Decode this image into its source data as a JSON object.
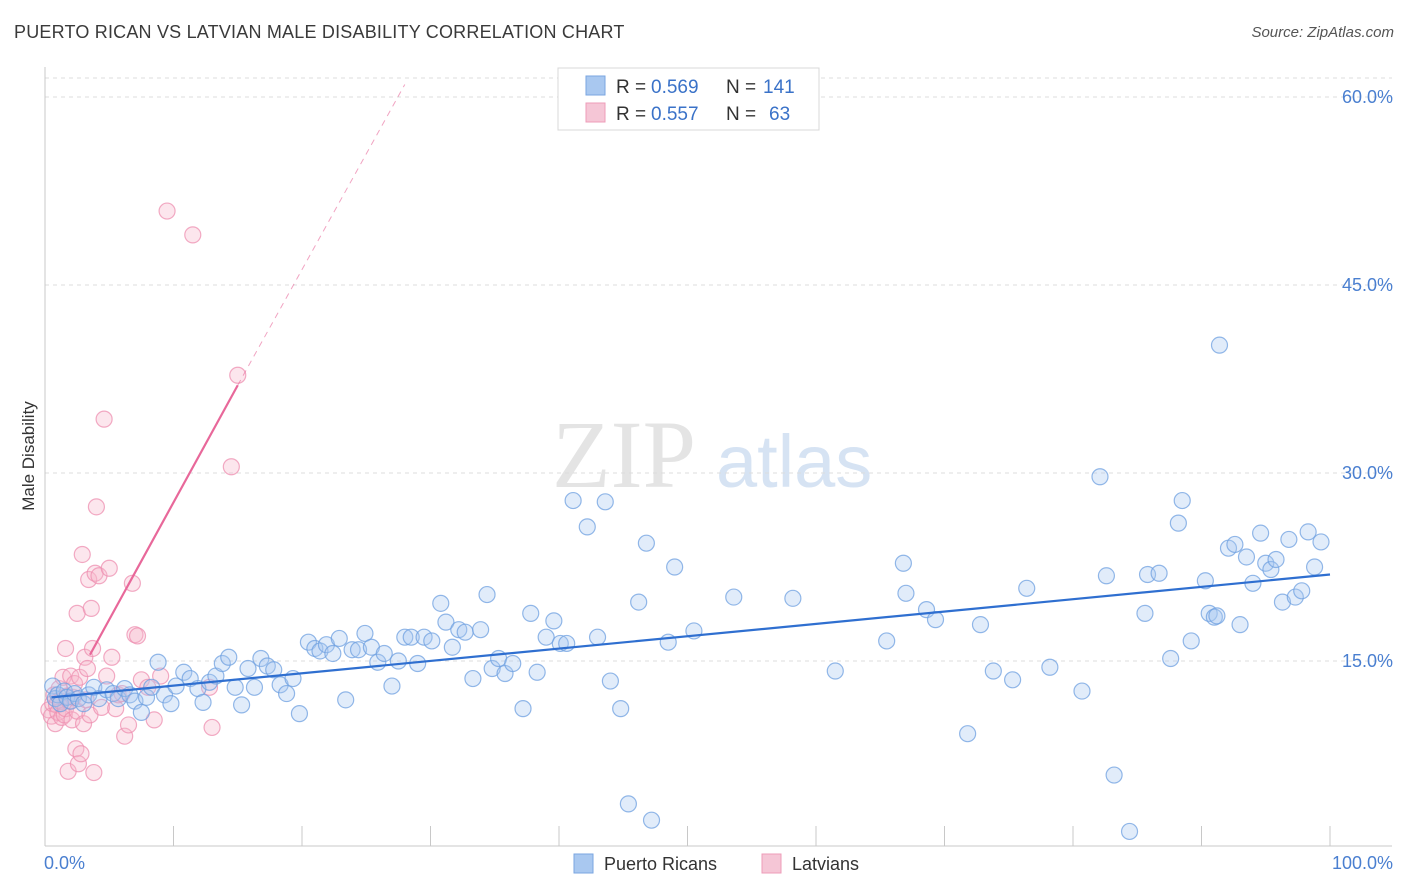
{
  "header": {
    "title": "PUERTO RICAN VS LATVIAN MALE DISABILITY CORRELATION CHART",
    "source": "Source: ZipAtlas.com"
  },
  "watermark": {
    "zip": "ZIP",
    "atlas": "atlas"
  },
  "legend_top": {
    "rows": [
      {
        "r_label": "R = ",
        "r_value": "0.569",
        "n_label": "N = ",
        "n_value": "141",
        "color": "#a9c8f0"
      },
      {
        "r_label": "R = ",
        "r_value": "0.557",
        "n_label": "N = ",
        "n_value": "63",
        "color": "#f5b8cc"
      }
    ]
  },
  "legend_bottom": {
    "items": [
      {
        "label": "Puerto Ricans",
        "color": "#a9c8f0"
      },
      {
        "label": "Latvians",
        "color": "#f5b8cc"
      }
    ]
  },
  "chart_data": {
    "type": "scatter",
    "title": "PUERTO RICAN VS LATVIAN MALE DISABILITY CORRELATION CHART",
    "xlabel": "",
    "ylabel": "Male Disability",
    "xlim": [
      0,
      100
    ],
    "ylim": [
      0,
      62
    ],
    "x_tick_labels": [
      "0.0%",
      "100.0%"
    ],
    "y_tick_labels": [
      "15.0%",
      "30.0%",
      "45.0%",
      "60.0%"
    ],
    "y_ticks": [
      15,
      30,
      45,
      60
    ],
    "grid": true,
    "legend_position": "top-center",
    "colors": {
      "puerto_ricans": "#6fa0e0",
      "latvians": "#ee8fb0",
      "pr_line": "#2f6fd0",
      "lv_line": "#e8689a"
    },
    "series": [
      {
        "name": "Puerto Ricans",
        "r": 0.569,
        "n": 141,
        "trend": [
          [
            0.5,
            12.1
          ],
          [
            100,
            21.9
          ]
        ],
        "points": [
          [
            0.6,
            13.0
          ],
          [
            0.8,
            12.0
          ],
          [
            1.0,
            12.3
          ],
          [
            1.2,
            11.6
          ],
          [
            1.5,
            12.6
          ],
          [
            1.7,
            12.1
          ],
          [
            2.0,
            11.8
          ],
          [
            2.3,
            12.4
          ],
          [
            2.6,
            12.0
          ],
          [
            3.0,
            11.6
          ],
          [
            3.4,
            12.3
          ],
          [
            3.8,
            12.9
          ],
          [
            4.2,
            12.0
          ],
          [
            4.8,
            12.7
          ],
          [
            5.3,
            12.4
          ],
          [
            5.7,
            12.0
          ],
          [
            6.2,
            12.8
          ],
          [
            6.6,
            12.3
          ],
          [
            7.0,
            11.8
          ],
          [
            7.5,
            10.9
          ],
          [
            7.9,
            12.1
          ],
          [
            8.3,
            12.9
          ],
          [
            8.8,
            14.9
          ],
          [
            9.3,
            12.3
          ],
          [
            9.8,
            11.6
          ],
          [
            10.2,
            13.0
          ],
          [
            10.8,
            14.1
          ],
          [
            11.3,
            13.6
          ],
          [
            11.9,
            12.8
          ],
          [
            12.3,
            11.7
          ],
          [
            12.8,
            13.3
          ],
          [
            13.3,
            13.8
          ],
          [
            13.8,
            14.8
          ],
          [
            14.3,
            15.3
          ],
          [
            14.8,
            12.9
          ],
          [
            15.3,
            11.5
          ],
          [
            15.8,
            14.4
          ],
          [
            16.3,
            12.9
          ],
          [
            16.8,
            15.2
          ],
          [
            17.3,
            14.6
          ],
          [
            17.8,
            14.3
          ],
          [
            18.3,
            13.1
          ],
          [
            18.8,
            12.4
          ],
          [
            19.3,
            13.6
          ],
          [
            19.8,
            10.8
          ],
          [
            20.5,
            16.5
          ],
          [
            21.0,
            16.0
          ],
          [
            21.4,
            15.8
          ],
          [
            21.9,
            16.3
          ],
          [
            22.4,
            15.6
          ],
          [
            22.9,
            16.8
          ],
          [
            23.4,
            11.9
          ],
          [
            23.9,
            15.9
          ],
          [
            24.4,
            15.9
          ],
          [
            24.9,
            17.2
          ],
          [
            25.4,
            16.1
          ],
          [
            25.9,
            14.9
          ],
          [
            26.4,
            15.6
          ],
          [
            27.0,
            13.0
          ],
          [
            27.5,
            15.0
          ],
          [
            28.0,
            16.9
          ],
          [
            28.5,
            16.9
          ],
          [
            29.0,
            14.8
          ],
          [
            29.5,
            16.9
          ],
          [
            30.1,
            16.6
          ],
          [
            30.8,
            19.6
          ],
          [
            31.2,
            18.1
          ],
          [
            31.7,
            16.1
          ],
          [
            32.2,
            17.5
          ],
          [
            32.7,
            17.3
          ],
          [
            33.3,
            13.6
          ],
          [
            33.9,
            17.5
          ],
          [
            34.4,
            20.3
          ],
          [
            34.8,
            14.4
          ],
          [
            35.3,
            15.2
          ],
          [
            35.8,
            14.0
          ],
          [
            36.4,
            14.8
          ],
          [
            37.2,
            11.2
          ],
          [
            37.8,
            18.8
          ],
          [
            38.3,
            14.1
          ],
          [
            39.0,
            16.9
          ],
          [
            39.6,
            18.2
          ],
          [
            40.1,
            16.4
          ],
          [
            40.6,
            16.4
          ],
          [
            41.1,
            27.8
          ],
          [
            42.2,
            25.7
          ],
          [
            43.0,
            16.9
          ],
          [
            43.6,
            27.7
          ],
          [
            44.0,
            13.4
          ],
          [
            44.8,
            11.2
          ],
          [
            45.4,
            3.6
          ],
          [
            46.2,
            19.7
          ],
          [
            46.8,
            24.4
          ],
          [
            47.2,
            2.3
          ],
          [
            48.5,
            16.5
          ],
          [
            49.0,
            22.5
          ],
          [
            50.5,
            17.4
          ],
          [
            53.6,
            20.1
          ],
          [
            58.2,
            20.0
          ],
          [
            61.5,
            14.2
          ],
          [
            65.5,
            16.6
          ],
          [
            66.8,
            22.8
          ],
          [
            67.0,
            20.4
          ],
          [
            68.6,
            19.1
          ],
          [
            69.3,
            18.3
          ],
          [
            71.8,
            9.2
          ],
          [
            72.8,
            17.9
          ],
          [
            73.8,
            14.2
          ],
          [
            75.3,
            13.5
          ],
          [
            76.4,
            20.8
          ],
          [
            78.2,
            14.5
          ],
          [
            80.7,
            12.6
          ],
          [
            82.1,
            29.7
          ],
          [
            82.6,
            21.8
          ],
          [
            83.2,
            5.9
          ],
          [
            84.4,
            1.4
          ],
          [
            85.6,
            18.8
          ],
          [
            85.8,
            21.9
          ],
          [
            86.7,
            22.0
          ],
          [
            87.6,
            15.2
          ],
          [
            88.2,
            26.0
          ],
          [
            88.5,
            27.8
          ],
          [
            89.2,
            16.6
          ],
          [
            90.3,
            21.4
          ],
          [
            90.6,
            18.8
          ],
          [
            91.0,
            18.5
          ],
          [
            91.2,
            18.6
          ],
          [
            91.4,
            40.2
          ],
          [
            92.1,
            24.0
          ],
          [
            92.6,
            24.3
          ],
          [
            93.0,
            17.9
          ],
          [
            93.5,
            23.3
          ],
          [
            94.0,
            21.2
          ],
          [
            94.6,
            25.2
          ],
          [
            95.0,
            22.8
          ],
          [
            95.4,
            22.3
          ],
          [
            95.8,
            23.1
          ],
          [
            96.3,
            19.7
          ],
          [
            96.8,
            24.7
          ],
          [
            97.3,
            20.1
          ],
          [
            97.8,
            20.6
          ],
          [
            98.3,
            25.3
          ],
          [
            98.8,
            22.5
          ],
          [
            99.3,
            24.5
          ]
        ]
      },
      {
        "name": "Latvians",
        "r": 0.557,
        "n": 63,
        "trend": [
          [
            3.5,
            15.5
          ],
          [
            15,
            37.0
          ]
        ],
        "trend_extended": [
          [
            15,
            37.0
          ],
          [
            28,
            61.0
          ]
        ],
        "points": [
          [
            0.3,
            11.1
          ],
          [
            0.5,
            10.6
          ],
          [
            0.6,
            11.6
          ],
          [
            0.7,
            12.3
          ],
          [
            0.8,
            10.0
          ],
          [
            0.9,
            11.5
          ],
          [
            1.0,
            10.9
          ],
          [
            1.1,
            12.8
          ],
          [
            1.2,
            11.8
          ],
          [
            1.3,
            10.5
          ],
          [
            1.4,
            13.7
          ],
          [
            1.5,
            10.7
          ],
          [
            1.6,
            11.2
          ],
          [
            1.6,
            16.0
          ],
          [
            1.7,
            12.2
          ],
          [
            1.8,
            6.2
          ],
          [
            1.9,
            11.8
          ],
          [
            2.0,
            13.8
          ],
          [
            2.1,
            10.3
          ],
          [
            2.2,
            12.1
          ],
          [
            2.3,
            13.2
          ],
          [
            2.4,
            8.0
          ],
          [
            2.5,
            18.8
          ],
          [
            2.5,
            11.0
          ],
          [
            2.6,
            6.8
          ],
          [
            2.7,
            13.7
          ],
          [
            2.8,
            7.6
          ],
          [
            2.9,
            23.5
          ],
          [
            3.0,
            10.0
          ],
          [
            3.1,
            15.3
          ],
          [
            3.2,
            11.9
          ],
          [
            3.3,
            14.4
          ],
          [
            3.4,
            21.5
          ],
          [
            3.5,
            10.7
          ],
          [
            3.6,
            19.2
          ],
          [
            3.7,
            16.0
          ],
          [
            3.8,
            6.1
          ],
          [
            3.9,
            22.0
          ],
          [
            4.0,
            27.3
          ],
          [
            4.2,
            21.8
          ],
          [
            4.4,
            11.3
          ],
          [
            4.6,
            34.3
          ],
          [
            4.8,
            13.8
          ],
          [
            5.0,
            22.4
          ],
          [
            5.2,
            15.3
          ],
          [
            5.5,
            11.2
          ],
          [
            5.7,
            12.3
          ],
          [
            6.0,
            12.4
          ],
          [
            6.2,
            9.0
          ],
          [
            6.5,
            9.9
          ],
          [
            6.8,
            21.2
          ],
          [
            7.0,
            17.1
          ],
          [
            7.2,
            17.0
          ],
          [
            7.5,
            13.5
          ],
          [
            8.0,
            12.9
          ],
          [
            8.5,
            10.3
          ],
          [
            9.0,
            13.8
          ],
          [
            9.5,
            50.9
          ],
          [
            11.5,
            49.0
          ],
          [
            12.8,
            12.9
          ],
          [
            13.0,
            9.7
          ],
          [
            14.5,
            30.5
          ],
          [
            15.0,
            37.8
          ]
        ]
      }
    ]
  }
}
